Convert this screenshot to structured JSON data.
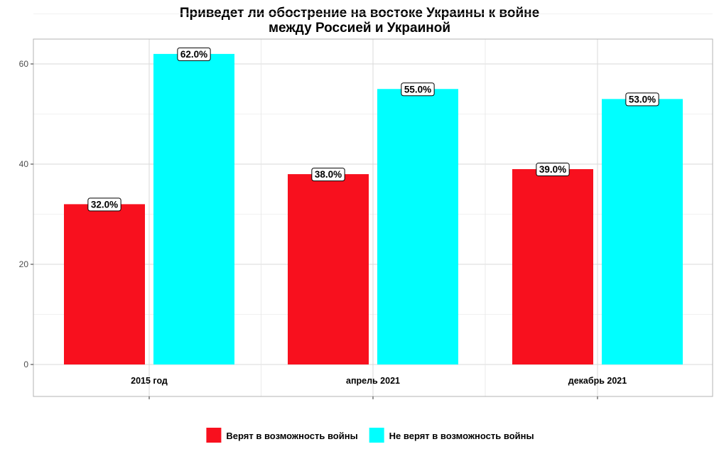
{
  "chart_data": {
    "type": "bar",
    "title_lines": [
      "Приведет ли обострение на востоке Украины к войне",
      "между Россией и Украиной"
    ],
    "categories": [
      "2015 год",
      "апрель 2021",
      "декабрь 2021"
    ],
    "series": [
      {
        "name": "Верят в возможность войны",
        "color": "#f8101e",
        "values": [
          32,
          38,
          39
        ],
        "labels": [
          "32.0%",
          "38.0%",
          "39.0%"
        ]
      },
      {
        "name": "Не верят в возможность войны",
        "color": "#00ffff",
        "values": [
          62,
          55,
          53
        ],
        "labels": [
          "62.0%",
          "55.0%",
          "53.0%"
        ]
      }
    ],
    "yticks": [
      0,
      20,
      40,
      60
    ],
    "ytick_labels": [
      "0",
      "20",
      "40",
      "60"
    ],
    "ylim": [
      0,
      65
    ],
    "xlabel": "",
    "ylabel": "",
    "grid": true,
    "legend_position": "bottom"
  }
}
